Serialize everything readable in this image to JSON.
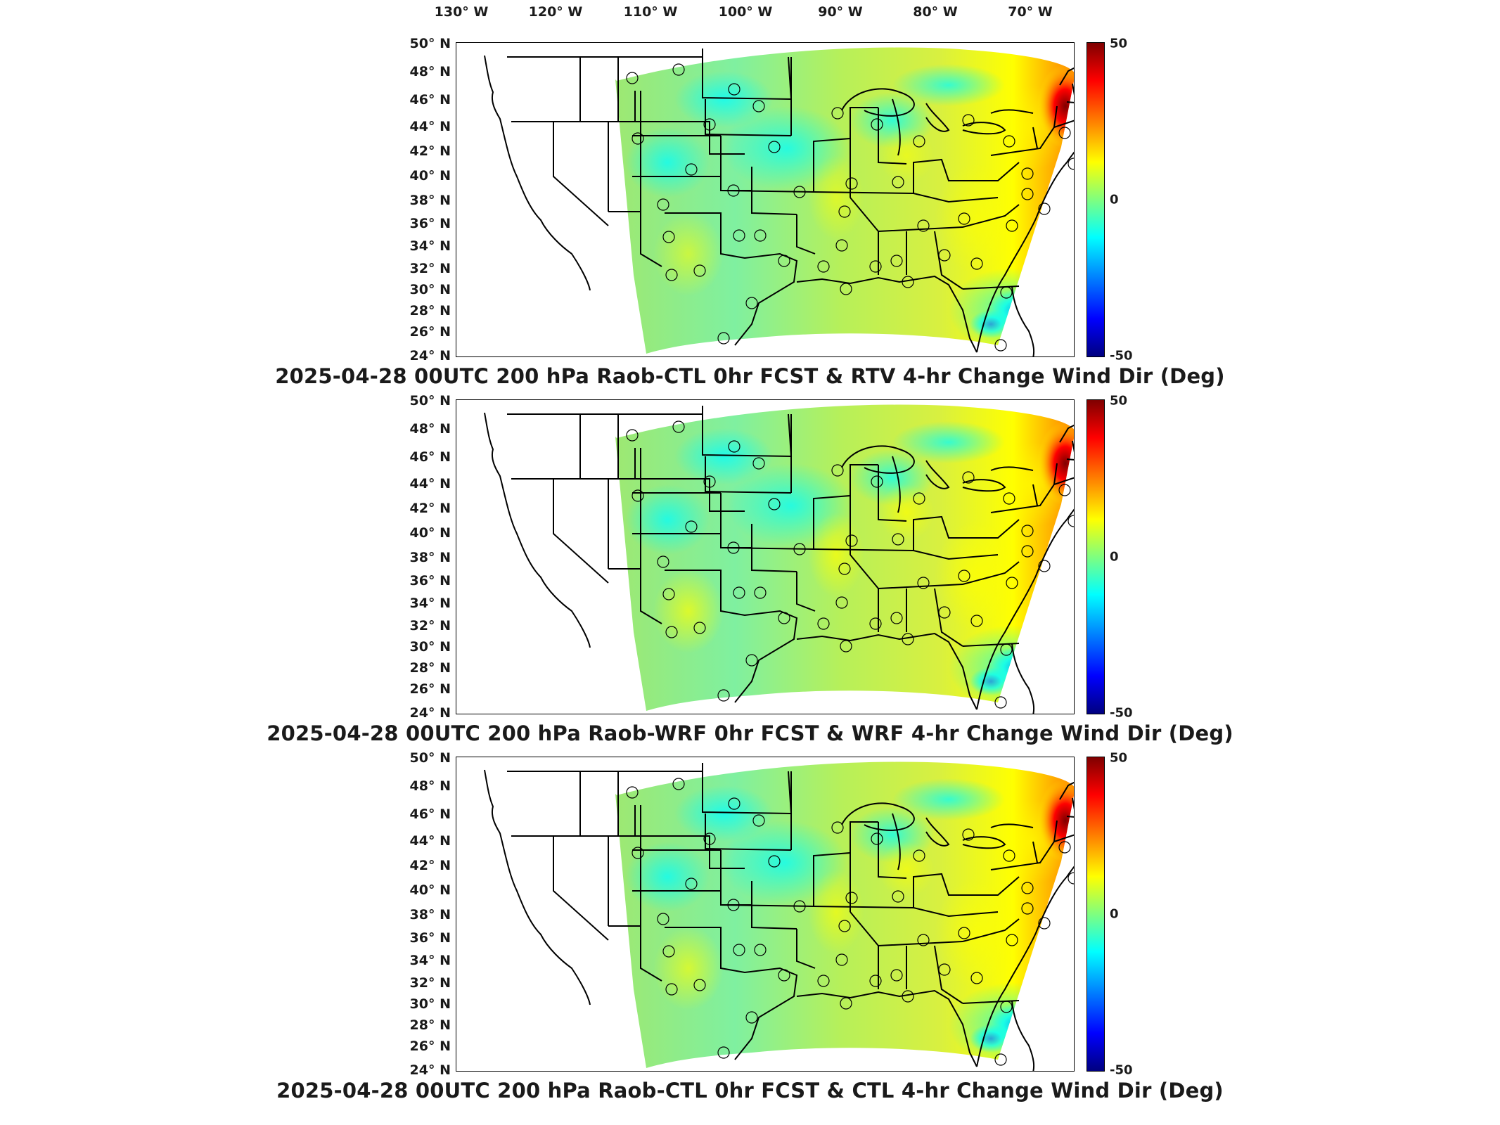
{
  "lon_labels": [
    "130° W",
    "120° W",
    "110° W",
    "100° W",
    "90° W",
    "80° W",
    "70° W"
  ],
  "lat_labels": [
    "50° N",
    "48° N",
    "46° N",
    "44° N",
    "42° N",
    "40° N",
    "38° N",
    "36° N",
    "34° N",
    "32° N",
    "30° N",
    "28° N",
    "26° N",
    "24° N"
  ],
  "colorbar": {
    "max": "50",
    "mid": "0",
    "min": "-50",
    "colors": [
      "#7f0000",
      "#ff0000",
      "#ff7f00",
      "#ffff00",
      "#7fff7f",
      "#00ffff",
      "#007fff",
      "#0000ff",
      "#00007f"
    ]
  },
  "panels": [
    {
      "title": "2025-04-28 00UTC 200 hPa Raob-CTL 0hr FCST & RTV 4-hr Change Wind Dir (Deg)"
    },
    {
      "title": "2025-04-28 00UTC 200 hPa Raob-WRF 0hr FCST & WRF 4-hr Change Wind Dir (Deg)"
    },
    {
      "title": "2025-04-28 00UTC 200 hPa Raob-CTL 0hr FCST & CTL 4-hr Change Wind Dir (Deg)"
    }
  ]
}
